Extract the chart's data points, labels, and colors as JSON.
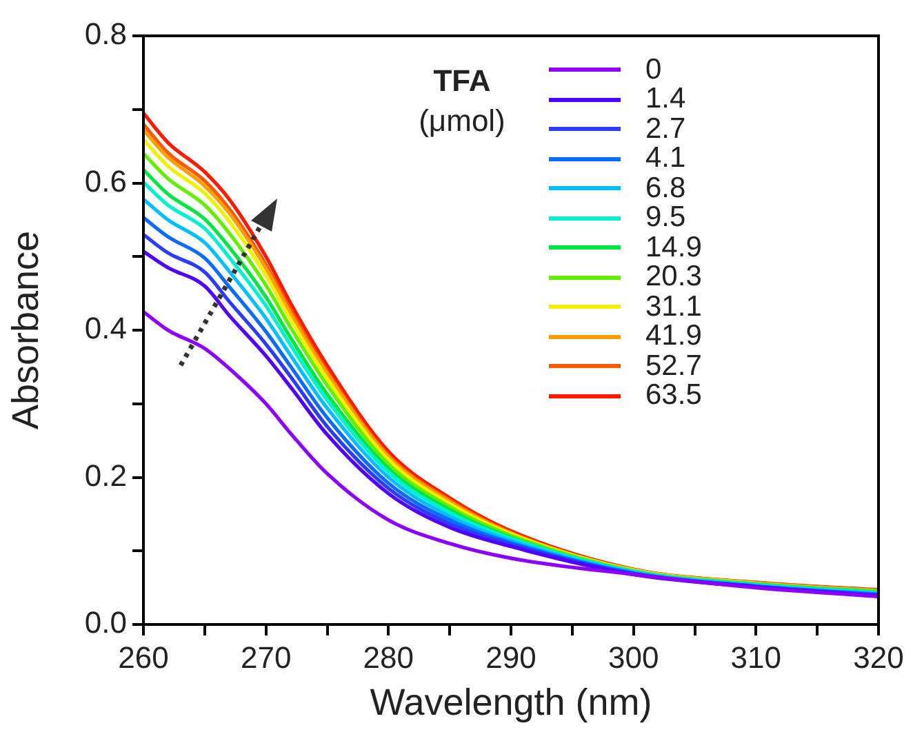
{
  "chart_data": {
    "type": "line",
    "xlabel": "Wavelength (nm)",
    "ylabel": "Absorbance",
    "legend_title": "TFA (μmol)",
    "legend": "top right",
    "grid": false,
    "marker": "none",
    "line_style": "solid",
    "xlim": [
      260,
      320
    ],
    "xticks": [
      260,
      {
        "value": 265,
        "label": null
      },
      270,
      {
        "value": 275,
        "label": null
      },
      280,
      {
        "value": 285,
        "label": null
      },
      290,
      {
        "value": 295,
        "label": null
      },
      300,
      {
        "value": 305,
        "label": null
      },
      310,
      {
        "value": 315,
        "label": null
      },
      320
    ],
    "ylim": [
      0,
      0.8
    ],
    "yticks": [
      {
        "value": 0,
        "label": "0.0"
      },
      {
        "value": 0.1,
        "label": null
      },
      {
        "value": 0.2,
        "label": "0.2"
      },
      {
        "value": 0.3,
        "label": null
      },
      {
        "value": 0.4,
        "label": "0.4"
      },
      {
        "value": 0.5,
        "label": null
      },
      {
        "value": 0.6,
        "label": "0.6"
      },
      {
        "value": 0.7,
        "label": null
      },
      {
        "value": 0.8,
        "label": "0.8"
      }
    ],
    "x": [
      260,
      262,
      265,
      267,
      270,
      272,
      275,
      280,
      285,
      290,
      300,
      310,
      320
    ],
    "series": [
      {
        "name": "0",
        "color": "#8b00ff",
        "values": [
          0.425,
          0.4,
          0.375,
          0.348,
          0.3,
          0.26,
          0.205,
          0.142,
          0.11,
          0.09,
          0.068,
          0.05,
          0.038
        ]
      },
      {
        "name": "1.4",
        "color": "#5000ff",
        "values": [
          0.507,
          0.485,
          0.46,
          0.42,
          0.365,
          0.323,
          0.258,
          0.178,
          0.132,
          0.106,
          0.068,
          0.051,
          0.039
        ]
      },
      {
        "name": "2.7",
        "color": "#2a3dff",
        "values": [
          0.53,
          0.505,
          0.479,
          0.439,
          0.381,
          0.337,
          0.269,
          0.185,
          0.137,
          0.109,
          0.069,
          0.052,
          0.04
        ]
      },
      {
        "name": "4.1",
        "color": "#0a6cff",
        "values": [
          0.553,
          0.527,
          0.498,
          0.459,
          0.398,
          0.351,
          0.281,
          0.192,
          0.142,
          0.111,
          0.07,
          0.052,
          0.041
        ]
      },
      {
        "name": "6.8",
        "color": "#00bfff",
        "values": [
          0.578,
          0.55,
          0.519,
          0.48,
          0.416,
          0.366,
          0.294,
          0.2,
          0.147,
          0.114,
          0.071,
          0.053,
          0.042
        ]
      },
      {
        "name": "9.5",
        "color": "#00f0d0",
        "values": [
          0.601,
          0.57,
          0.538,
          0.499,
          0.433,
          0.38,
          0.305,
          0.207,
          0.152,
          0.117,
          0.072,
          0.054,
          0.043
        ]
      },
      {
        "name": "14.9",
        "color": "#00e640",
        "values": [
          0.618,
          0.585,
          0.551,
          0.513,
          0.445,
          0.39,
          0.313,
          0.212,
          0.156,
          0.118,
          0.072,
          0.055,
          0.044
        ]
      },
      {
        "name": "20.3",
        "color": "#66ee00",
        "values": [
          0.64,
          0.606,
          0.57,
          0.532,
          0.461,
          0.404,
          0.325,
          0.218,
          0.16,
          0.121,
          0.073,
          0.055,
          0.045
        ]
      },
      {
        "name": "31.1",
        "color": "#f0f000",
        "values": [
          0.659,
          0.623,
          0.586,
          0.548,
          0.474,
          0.415,
          0.334,
          0.224,
          0.164,
          0.123,
          0.074,
          0.056,
          0.045
        ]
      },
      {
        "name": "41.9",
        "color": "#ffa000",
        "values": [
          0.672,
          0.635,
          0.596,
          0.559,
          0.484,
          0.423,
          0.341,
          0.228,
          0.167,
          0.124,
          0.074,
          0.056,
          0.046
        ]
      },
      {
        "name": "52.7",
        "color": "#ff5a00",
        "values": [
          0.68,
          0.641,
          0.603,
          0.565,
          0.489,
          0.428,
          0.344,
          0.23,
          0.169,
          0.125,
          0.074,
          0.057,
          0.046
        ]
      },
      {
        "name": "63.5",
        "color": "#ff1a00",
        "values": [
          0.695,
          0.655,
          0.615,
          0.578,
          0.5,
          0.437,
          0.352,
          0.235,
          0.172,
          0.127,
          0.075,
          0.057,
          0.047
        ]
      }
    ]
  }
}
